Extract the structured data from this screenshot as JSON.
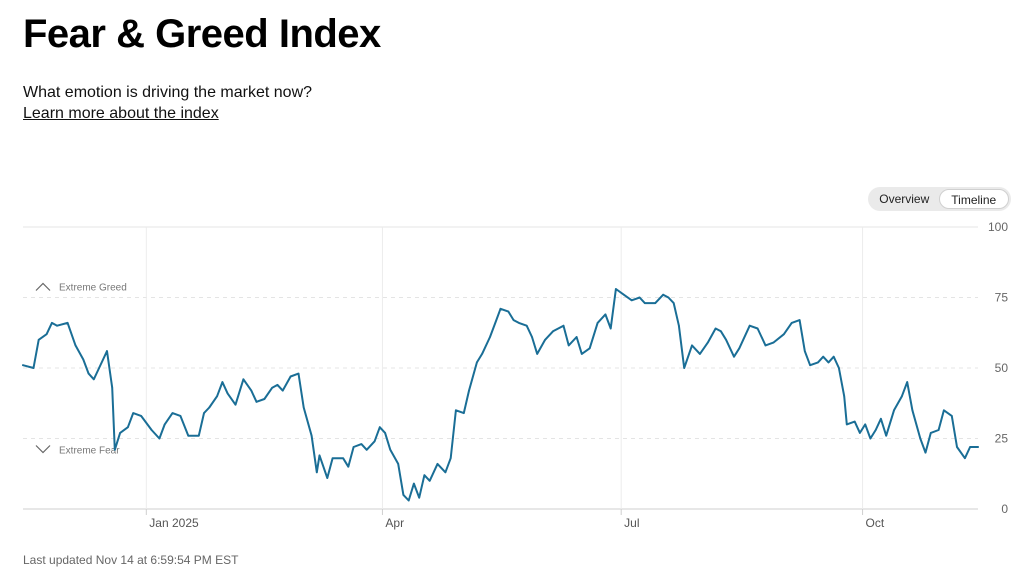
{
  "header": {
    "title": "Fear & Greed Index",
    "subtitle": "What emotion is driving the market now?",
    "learn_more": "Learn more about the index"
  },
  "toggle": {
    "overview": "Overview",
    "timeline": "Timeline",
    "selected": "Timeline"
  },
  "footer": {
    "last_updated": "Last updated Nov 14 at 6:59:54 PM EST"
  },
  "chart_data": {
    "type": "line",
    "title": "",
    "xlabel": "",
    "ylabel": "",
    "ylim": [
      0,
      100
    ],
    "yticks": [
      0,
      25,
      50,
      75,
      100
    ],
    "xticks": [
      {
        "label": "Jan 2025",
        "date": "2025-01-01"
      },
      {
        "label": "Apr",
        "date": "2025-04-01"
      },
      {
        "label": "Jul",
        "date": "2025-07-01"
      },
      {
        "label": "Oct",
        "date": "2025-10-01"
      }
    ],
    "xlim": [
      "2024-11-15",
      "2025-11-14"
    ],
    "bands": [
      {
        "label": "Extreme Greed",
        "value": 75
      },
      {
        "label": "Extreme Fear",
        "value": 25
      }
    ],
    "line_color": "#1a6e96",
    "series": [
      {
        "points": [
          [
            "2024-11-15",
            51
          ],
          [
            "2024-11-19",
            50
          ],
          [
            "2024-11-21",
            60
          ],
          [
            "2024-11-24",
            62
          ],
          [
            "2024-11-26",
            66
          ],
          [
            "2024-11-28",
            65
          ],
          [
            "2024-12-02",
            66
          ],
          [
            "2024-12-05",
            58
          ],
          [
            "2024-12-08",
            53
          ],
          [
            "2024-12-10",
            48
          ],
          [
            "2024-12-12",
            46
          ],
          [
            "2024-12-14",
            50
          ],
          [
            "2024-12-17",
            56
          ],
          [
            "2024-12-19",
            43
          ],
          [
            "2024-12-20",
            21
          ],
          [
            "2024-12-22",
            27
          ],
          [
            "2024-12-25",
            29
          ],
          [
            "2024-12-27",
            34
          ],
          [
            "2024-12-30",
            33
          ],
          [
            "2025-01-03",
            28
          ],
          [
            "2025-01-06",
            25
          ],
          [
            "2025-01-08",
            30
          ],
          [
            "2025-01-11",
            34
          ],
          [
            "2025-01-14",
            33
          ],
          [
            "2025-01-17",
            26
          ],
          [
            "2025-01-21",
            26
          ],
          [
            "2025-01-23",
            34
          ],
          [
            "2025-01-25",
            36
          ],
          [
            "2025-01-28",
            40
          ],
          [
            "2025-01-30",
            45
          ],
          [
            "2025-02-01",
            41
          ],
          [
            "2025-02-04",
            37
          ],
          [
            "2025-02-07",
            46
          ],
          [
            "2025-02-10",
            42
          ],
          [
            "2025-02-12",
            38
          ],
          [
            "2025-02-15",
            39
          ],
          [
            "2025-02-18",
            43
          ],
          [
            "2025-02-20",
            44
          ],
          [
            "2025-02-22",
            42
          ],
          [
            "2025-02-25",
            47
          ],
          [
            "2025-02-28",
            48
          ],
          [
            "2025-03-02",
            36
          ],
          [
            "2025-03-05",
            26
          ],
          [
            "2025-03-07",
            13
          ],
          [
            "2025-03-08",
            19
          ],
          [
            "2025-03-11",
            11
          ],
          [
            "2025-03-13",
            18
          ],
          [
            "2025-03-17",
            18
          ],
          [
            "2025-03-19",
            15
          ],
          [
            "2025-03-21",
            22
          ],
          [
            "2025-03-24",
            23
          ],
          [
            "2025-03-26",
            21
          ],
          [
            "2025-03-29",
            24
          ],
          [
            "2025-03-31",
            29
          ],
          [
            "2025-04-02",
            27
          ],
          [
            "2025-04-04",
            21
          ],
          [
            "2025-04-07",
            16
          ],
          [
            "2025-04-09",
            5
          ],
          [
            "2025-04-11",
            3
          ],
          [
            "2025-04-13",
            9
          ],
          [
            "2025-04-15",
            4
          ],
          [
            "2025-04-17",
            12
          ],
          [
            "2025-04-19",
            10
          ],
          [
            "2025-04-22",
            16
          ],
          [
            "2025-04-25",
            13
          ],
          [
            "2025-04-27",
            18
          ],
          [
            "2025-04-29",
            35
          ],
          [
            "2025-05-02",
            34
          ],
          [
            "2025-05-04",
            42
          ],
          [
            "2025-05-07",
            52
          ],
          [
            "2025-05-09",
            55
          ],
          [
            "2025-05-12",
            61
          ],
          [
            "2025-05-14",
            66
          ],
          [
            "2025-05-16",
            71
          ],
          [
            "2025-05-19",
            70
          ],
          [
            "2025-05-21",
            67
          ],
          [
            "2025-05-23",
            66
          ],
          [
            "2025-05-26",
            65
          ],
          [
            "2025-05-28",
            61
          ],
          [
            "2025-05-30",
            55
          ],
          [
            "2025-06-02",
            60
          ],
          [
            "2025-06-05",
            63
          ],
          [
            "2025-06-09",
            65
          ],
          [
            "2025-06-11",
            58
          ],
          [
            "2025-06-14",
            61
          ],
          [
            "2025-06-16",
            55
          ],
          [
            "2025-06-19",
            57
          ],
          [
            "2025-06-22",
            66
          ],
          [
            "2025-06-25",
            69
          ],
          [
            "2025-06-27",
            64
          ],
          [
            "2025-06-29",
            78
          ],
          [
            "2025-07-02",
            76
          ],
          [
            "2025-07-05",
            74
          ],
          [
            "2025-07-08",
            75
          ],
          [
            "2025-07-10",
            73
          ],
          [
            "2025-07-14",
            73
          ],
          [
            "2025-07-17",
            76
          ],
          [
            "2025-07-19",
            75
          ],
          [
            "2025-07-21",
            73
          ],
          [
            "2025-07-23",
            65
          ],
          [
            "2025-07-25",
            50
          ],
          [
            "2025-07-28",
            58
          ],
          [
            "2025-07-31",
            55
          ],
          [
            "2025-08-03",
            59
          ],
          [
            "2025-08-06",
            64
          ],
          [
            "2025-08-08",
            63
          ],
          [
            "2025-08-10",
            60
          ],
          [
            "2025-08-13",
            54
          ],
          [
            "2025-08-15",
            57
          ],
          [
            "2025-08-19",
            65
          ],
          [
            "2025-08-22",
            64
          ],
          [
            "2025-08-25",
            58
          ],
          [
            "2025-08-28",
            59
          ],
          [
            "2025-09-01",
            62
          ],
          [
            "2025-09-04",
            66
          ],
          [
            "2025-09-07",
            67
          ],
          [
            "2025-09-09",
            56
          ],
          [
            "2025-09-11",
            51
          ],
          [
            "2025-09-14",
            52
          ],
          [
            "2025-09-16",
            54
          ],
          [
            "2025-09-18",
            52
          ],
          [
            "2025-09-20",
            54
          ],
          [
            "2025-09-22",
            50
          ],
          [
            "2025-09-24",
            40
          ],
          [
            "2025-09-25",
            30
          ],
          [
            "2025-09-28",
            31
          ],
          [
            "2025-09-30",
            27
          ],
          [
            "2025-10-02",
            30
          ],
          [
            "2025-10-04",
            25
          ],
          [
            "2025-10-06",
            28
          ],
          [
            "2025-10-08",
            32
          ],
          [
            "2025-10-10",
            26
          ],
          [
            "2025-10-13",
            35
          ],
          [
            "2025-10-16",
            40
          ],
          [
            "2025-10-18",
            45
          ],
          [
            "2025-10-20",
            35
          ],
          [
            "2025-10-23",
            25
          ],
          [
            "2025-10-25",
            20
          ],
          [
            "2025-10-27",
            27
          ],
          [
            "2025-10-30",
            28
          ],
          [
            "2025-11-01",
            35
          ],
          [
            "2025-11-04",
            33
          ],
          [
            "2025-11-06",
            22
          ],
          [
            "2025-11-09",
            18
          ],
          [
            "2025-11-11",
            22
          ],
          [
            "2025-11-14",
            22
          ]
        ]
      }
    ]
  }
}
